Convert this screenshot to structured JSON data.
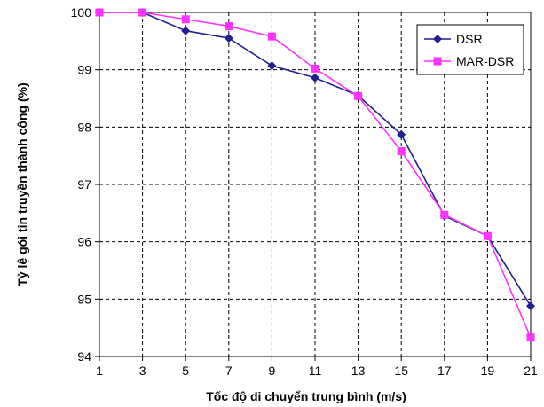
{
  "chart_data": {
    "type": "line",
    "title": "",
    "xlabel": "Tốc độ di chuyển trung bình (m/s)",
    "ylabel": "Tỷ lệ gói tin truyền thành công (%)",
    "x": [
      1,
      3,
      5,
      7,
      9,
      11,
      13,
      15,
      17,
      19,
      21
    ],
    "x_ticks": [
      "1",
      "3",
      "5",
      "7",
      "9",
      "11",
      "13",
      "15",
      "17",
      "19",
      "21"
    ],
    "y_ticks": [
      "94",
      "95",
      "96",
      "97",
      "98",
      "99",
      "100"
    ],
    "xlim": [
      1,
      21
    ],
    "ylim": [
      94,
      100
    ],
    "grid": true,
    "grid_style": "dashed",
    "legend_position": "top-right",
    "series": [
      {
        "name": "DSR",
        "color": "#1f1f8f",
        "marker": "diamond",
        "values": [
          100,
          100,
          99.68,
          99.55,
          99.07,
          98.86,
          98.55,
          97.87,
          96.45,
          96.1,
          94.88
        ]
      },
      {
        "name": "MAR-DSR",
        "color": "#ff33ff",
        "marker": "square",
        "values": [
          100,
          100,
          99.88,
          99.76,
          99.58,
          99.02,
          98.54,
          97.58,
          96.47,
          96.1,
          94.33
        ]
      }
    ]
  }
}
